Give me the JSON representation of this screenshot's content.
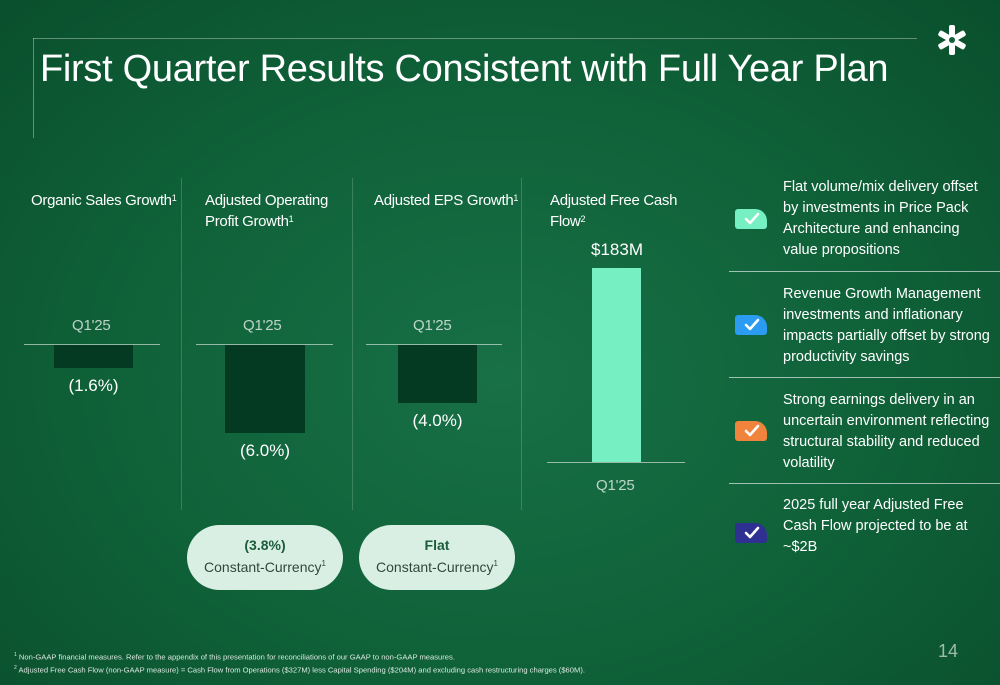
{
  "title": "First Quarter Results Consistent with Full Year Plan",
  "logo": "kellanova-star-icon",
  "chart_data": [
    {
      "type": "bar",
      "title": "Organic Sales Growth",
      "title_sup": "1",
      "categories": [
        "Q1'25"
      ],
      "values": [
        -1.6
      ],
      "value_labels": [
        "(1.6%)"
      ],
      "unit": "%"
    },
    {
      "type": "bar",
      "title": "Adjusted Operating Profit Growth",
      "title_lines": [
        "Adjusted Operating",
        "Profit Growth"
      ],
      "title_sup": "1",
      "categories": [
        "Q1'25"
      ],
      "values": [
        -6.0
      ],
      "value_labels": [
        "(6.0%)"
      ],
      "unit": "%",
      "constant_currency": {
        "value": "(3.8%)",
        "label": "Constant-Currency",
        "sup": "1"
      }
    },
    {
      "type": "bar",
      "title": "Adjusted EPS Growth",
      "title_sup": "1",
      "categories": [
        "Q1'25"
      ],
      "values": [
        -4.0
      ],
      "value_labels": [
        "(4.0%)"
      ],
      "unit": "%",
      "constant_currency": {
        "value": "Flat",
        "label": "Constant-Currency",
        "sup": "1"
      }
    },
    {
      "type": "bar",
      "title": "Adjusted Free Cash Flow",
      "title_lines": [
        "Adjusted Free Cash",
        "Flow"
      ],
      "title_sup": "2",
      "categories": [
        "Q1'25"
      ],
      "values": [
        183
      ],
      "value_labels": [
        "$183M"
      ],
      "unit": "$M"
    }
  ],
  "takeaways": [
    {
      "text": "Flat volume/mix delivery offset by investments in Price Pack Architecture and enhancing value propositions",
      "color": "#76f0c3",
      "icon": "check-icon"
    },
    {
      "text": "Revenue Growth Management investments and inflationary impacts partially offset by strong productivity savings",
      "color": "#2b9cf2",
      "icon": "check-icon"
    },
    {
      "text": "Strong earnings delivery in an uncertain environment reflecting structural stability and reduced volatility",
      "color": "#f0843c",
      "icon": "check-icon"
    },
    {
      "text": "2025 full year Adjusted Free Cash Flow  projected to be at ~$2B",
      "color": "#2e3192",
      "icon": "check-icon"
    }
  ],
  "footnotes": [
    {
      "sup": "1",
      "text": "Non-GAAP financial measures. Refer to the appendix of this presentation for reconciliations of our GAAP to non-GAAP measures."
    },
    {
      "sup": "2",
      "text": "Adjusted Free Cash Flow (non-GAAP measure) = Cash Flow from Operations ($327M) less Capital Spending ($204M) and excluding cash restructuring charges ($60M)."
    }
  ],
  "page_number": "14"
}
